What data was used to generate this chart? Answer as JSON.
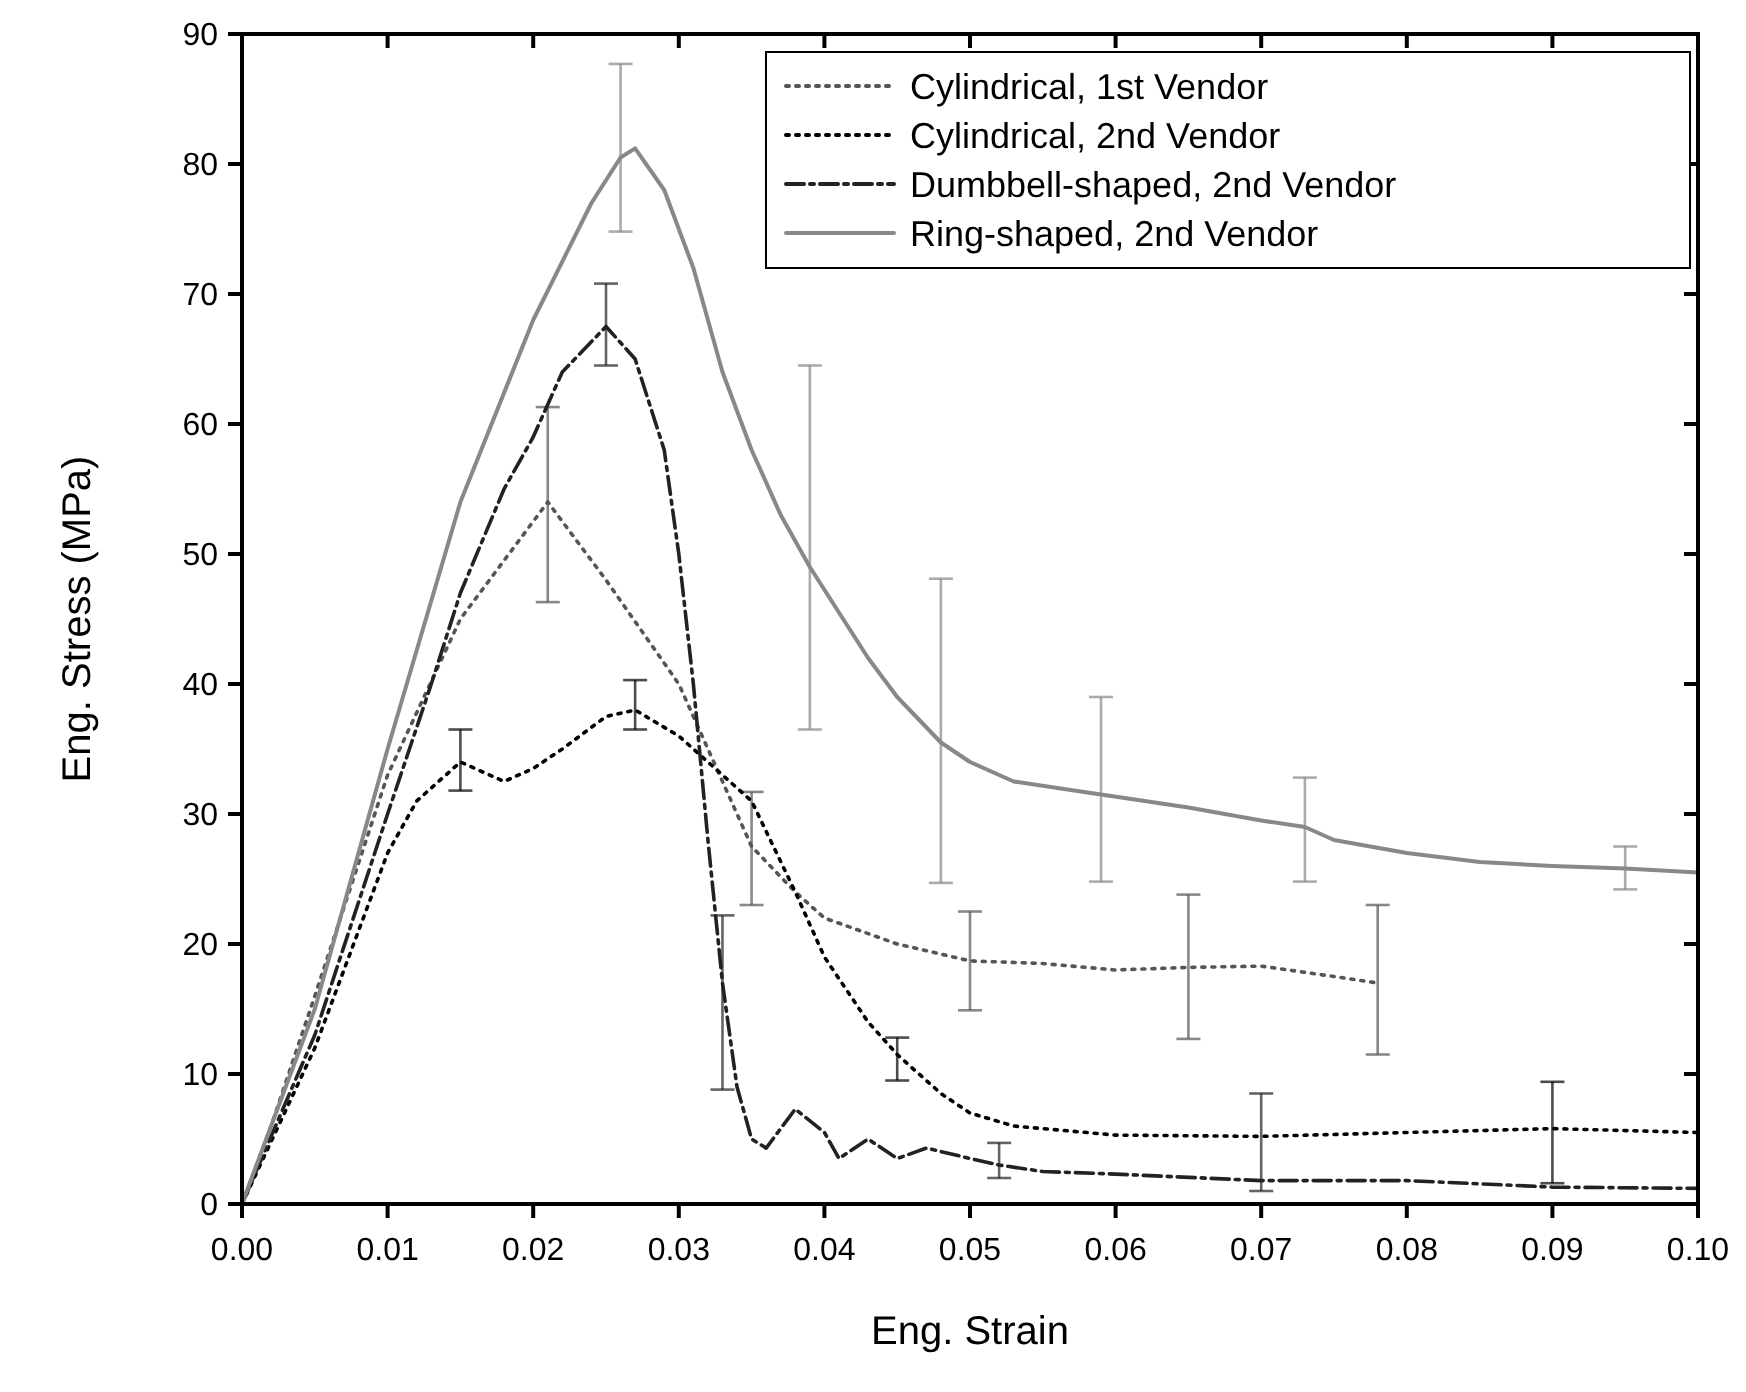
{
  "chart_data": {
    "type": "line",
    "xlabel": "Eng. Strain",
    "ylabel": "Eng. Stress (MPa)",
    "xlim": [
      0,
      0.1
    ],
    "xticks": [
      {
        "value": 0,
        "label": "0.00"
      },
      {
        "value": 0.01,
        "label": "0.01"
      },
      {
        "value": 0.02,
        "label": "0.02"
      },
      {
        "value": 0.03,
        "label": "0.03"
      },
      {
        "value": 0.04,
        "label": "0.04"
      },
      {
        "value": 0.05,
        "label": "0.05"
      },
      {
        "value": 0.06,
        "label": "0.06"
      },
      {
        "value": 0.07,
        "label": "0.07"
      },
      {
        "value": 0.08,
        "label": "0.08"
      },
      {
        "value": 0.09,
        "label": "0.09"
      },
      {
        "value": 0.1,
        "label": "0.10"
      }
    ],
    "ylim": [
      0,
      90
    ],
    "yticks": [
      0,
      10,
      20,
      30,
      40,
      50,
      60,
      70,
      80,
      90
    ],
    "grid": false,
    "legend": "top right",
    "marker": "none",
    "series": [
      {
        "name": "Cylindrical, 1st Vendor",
        "color": "#555555",
        "line_style": "dotted",
        "x": [
          0,
          0.002,
          0.005,
          0.01,
          0.015,
          0.021,
          0.025,
          0.03,
          0.035,
          0.038,
          0.04,
          0.045,
          0.05,
          0.055,
          0.06,
          0.065,
          0.07,
          0.075,
          0.078
        ],
        "values": [
          0,
          6,
          16,
          33,
          45,
          54,
          48,
          40,
          27.5,
          24,
          22,
          20,
          18.7,
          18.5,
          18,
          18.2,
          18.3,
          17.5,
          17
        ],
        "errors": [
          null,
          null,
          null,
          null,
          null,
          [
            46.3,
            61.3
          ],
          null,
          null,
          [
            23,
            31.7
          ],
          null,
          null,
          null,
          [
            14.9,
            22.5
          ],
          null,
          null,
          [
            12.7,
            23.8
          ],
          null,
          null,
          [
            11.5,
            23
          ]
        ]
      },
      {
        "name": "Cylindrical, 2nd Vendor",
        "color": "#000000",
        "line_style": "dotted",
        "x": [
          0,
          0.005,
          0.01,
          0.012,
          0.015,
          0.018,
          0.02,
          0.022,
          0.025,
          0.027,
          0.03,
          0.033,
          0.035,
          0.038,
          0.04,
          0.043,
          0.045,
          0.048,
          0.05,
          0.053,
          0.06,
          0.07,
          0.08,
          0.09,
          0.1
        ],
        "values": [
          0,
          12,
          27,
          31,
          34,
          32.5,
          33.5,
          35,
          37.5,
          38,
          36,
          33,
          31,
          24,
          19,
          14,
          11.5,
          8.5,
          7,
          6,
          5.3,
          5.2,
          5.5,
          5.8,
          5.5
        ],
        "errors": [
          null,
          null,
          null,
          null,
          [
            31.8,
            36.5
          ],
          null,
          null,
          null,
          null,
          [
            36.5,
            40.3
          ],
          null,
          null,
          null,
          null,
          null,
          null,
          [
            9.5,
            12.8
          ],
          null,
          null,
          null,
          null,
          null,
          null,
          [
            1.6,
            9.4
          ],
          null
        ]
      },
      {
        "name": "Dumbbell-shaped, 2nd Vendor",
        "color": "#222222",
        "line_style": "dashed",
        "x": [
          0,
          0.005,
          0.01,
          0.013,
          0.015,
          0.018,
          0.02,
          0.022,
          0.025,
          0.027,
          0.029,
          0.03,
          0.031,
          0.032,
          0.033,
          0.034,
          0.035,
          0.036,
          0.038,
          0.04,
          0.041,
          0.043,
          0.045,
          0.047,
          0.05,
          0.052,
          0.055,
          0.06,
          0.07,
          0.08,
          0.09,
          0.1
        ],
        "values": [
          0,
          13,
          30,
          40,
          47,
          55,
          59,
          64,
          67.5,
          65,
          58,
          50,
          40,
          28,
          17,
          9,
          5,
          4.3,
          7.3,
          5.5,
          3.5,
          5,
          3.5,
          4.3,
          3.5,
          3,
          2.5,
          2.3,
          1.8,
          1.8,
          1.3,
          1.2
        ],
        "errors": [
          null,
          null,
          null,
          null,
          null,
          null,
          null,
          null,
          [
            64.5,
            70.8
          ],
          null,
          null,
          null,
          null,
          null,
          [
            8.8,
            22.2
          ],
          null,
          null,
          null,
          null,
          null,
          null,
          null,
          null,
          null,
          null,
          [
            2,
            4.7
          ],
          null,
          null,
          [
            1,
            8.5
          ],
          null,
          null,
          null
        ]
      },
      {
        "name": "Ring-shaped, 2nd Vendor",
        "color": "#888888",
        "line_style": "solid",
        "x": [
          0,
          0.005,
          0.01,
          0.015,
          0.02,
          0.024,
          0.026,
          0.027,
          0.029,
          0.031,
          0.033,
          0.035,
          0.037,
          0.039,
          0.043,
          0.045,
          0.048,
          0.05,
          0.053,
          0.056,
          0.059,
          0.065,
          0.07,
          0.073,
          0.075,
          0.08,
          0.085,
          0.09,
          0.095,
          0.1
        ],
        "values": [
          0,
          15,
          35,
          54,
          68,
          77,
          80.5,
          81.2,
          78,
          72,
          64,
          58,
          53,
          49,
          42,
          39,
          35.5,
          34,
          32.5,
          32,
          31.5,
          30.5,
          29.5,
          29,
          28,
          27,
          26.3,
          26,
          25.8,
          25.5
        ],
        "errors": [
          null,
          null,
          null,
          null,
          null,
          null,
          [
            74.8,
            87.7
          ],
          null,
          null,
          null,
          null,
          null,
          null,
          [
            36.5,
            64.5
          ],
          null,
          null,
          [
            24.7,
            48.1
          ],
          null,
          null,
          null,
          [
            24.8,
            39
          ],
          null,
          null,
          [
            24.8,
            32.8
          ],
          null,
          null,
          null,
          null,
          [
            24.2,
            27.5
          ],
          null
        ]
      }
    ]
  }
}
